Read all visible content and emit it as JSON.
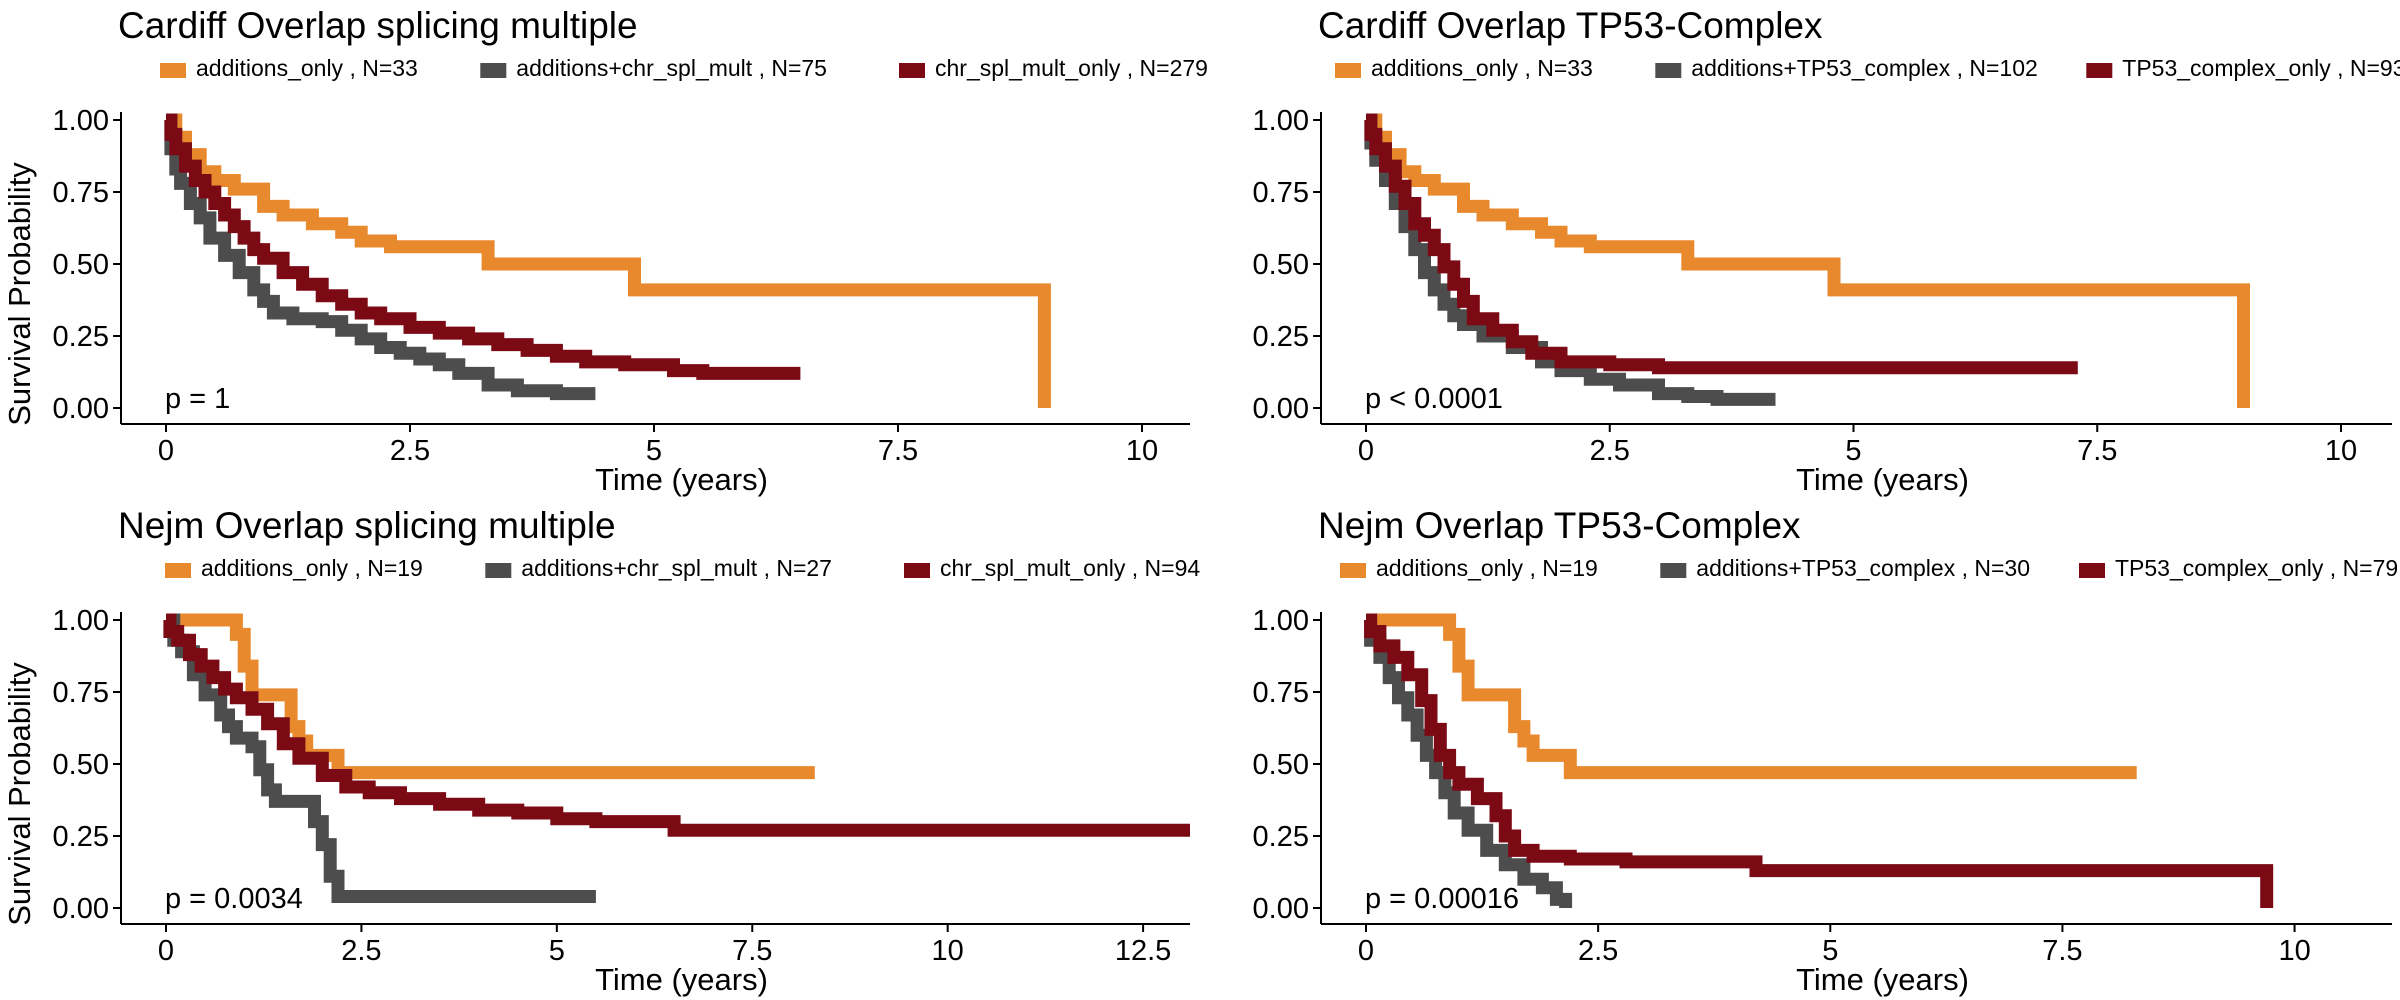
{
  "figure": {
    "ylabel": "Survival Probability",
    "xlabel": "Time (years)"
  },
  "chart_data": [
    {
      "type": "line",
      "title": "Cardiff Overlap splicing multiple",
      "xlabel": "Time (years)",
      "ylabel": "Survival Probability",
      "xlim": [
        0,
        10
      ],
      "ylim": [
        0,
        1
      ],
      "xticks": [
        "0",
        "2.5",
        "5",
        "7.5",
        "10"
      ],
      "yticks": [
        "0.00",
        "0.25",
        "0.50",
        "0.75",
        "1.00"
      ],
      "pvalue": "p = 1",
      "legend_position": "top",
      "series": [
        {
          "name": "additions_only",
          "n_label": ", N=33",
          "color": "#E8892E",
          "points": [
            [
              0,
              1
            ],
            [
              0.1,
              0.94
            ],
            [
              0.2,
              0.88
            ],
            [
              0.35,
              0.82
            ],
            [
              0.5,
              0.79
            ],
            [
              0.7,
              0.76
            ],
            [
              1.0,
              0.7
            ],
            [
              1.2,
              0.67
            ],
            [
              1.5,
              0.64
            ],
            [
              1.8,
              0.61
            ],
            [
              2.0,
              0.58
            ],
            [
              2.3,
              0.56
            ],
            [
              3.3,
              0.5
            ],
            [
              4.8,
              0.41
            ],
            [
              9.0,
              0.41
            ],
            [
              9.0,
              0.0
            ]
          ]
        },
        {
          "name": "additions+chr_spl_mult",
          "n_label": ", N=75",
          "color": "#4D4D4D",
          "points": [
            [
              0,
              1
            ],
            [
              0.05,
              0.9
            ],
            [
              0.1,
              0.83
            ],
            [
              0.15,
              0.78
            ],
            [
              0.25,
              0.71
            ],
            [
              0.35,
              0.66
            ],
            [
              0.45,
              0.59
            ],
            [
              0.6,
              0.53
            ],
            [
              0.75,
              0.47
            ],
            [
              0.9,
              0.41
            ],
            [
              1.0,
              0.37
            ],
            [
              1.1,
              0.33
            ],
            [
              1.3,
              0.31
            ],
            [
              1.6,
              0.3
            ],
            [
              1.8,
              0.27
            ],
            [
              2.0,
              0.24
            ],
            [
              2.2,
              0.21
            ],
            [
              2.4,
              0.19
            ],
            [
              2.6,
              0.17
            ],
            [
              2.8,
              0.15
            ],
            [
              3.0,
              0.12
            ],
            [
              3.3,
              0.08
            ],
            [
              3.6,
              0.06
            ],
            [
              4.0,
              0.05
            ],
            [
              4.4,
              0.05
            ]
          ]
        },
        {
          "name": "chr_spl_mult_only",
          "n_label": ", N=279",
          "color": "#7B0A14",
          "points": [
            [
              0,
              1
            ],
            [
              0.05,
              0.95
            ],
            [
              0.1,
              0.9
            ],
            [
              0.2,
              0.84
            ],
            [
              0.3,
              0.79
            ],
            [
              0.4,
              0.75
            ],
            [
              0.5,
              0.71
            ],
            [
              0.6,
              0.67
            ],
            [
              0.7,
              0.63
            ],
            [
              0.8,
              0.59
            ],
            [
              0.9,
              0.55
            ],
            [
              1.0,
              0.52
            ],
            [
              1.2,
              0.47
            ],
            [
              1.4,
              0.43
            ],
            [
              1.6,
              0.39
            ],
            [
              1.8,
              0.36
            ],
            [
              2.0,
              0.33
            ],
            [
              2.2,
              0.31
            ],
            [
              2.5,
              0.28
            ],
            [
              2.8,
              0.26
            ],
            [
              3.1,
              0.24
            ],
            [
              3.4,
              0.22
            ],
            [
              3.7,
              0.2
            ],
            [
              4.0,
              0.18
            ],
            [
              4.3,
              0.16
            ],
            [
              4.7,
              0.15
            ],
            [
              5.2,
              0.13
            ],
            [
              5.5,
              0.12
            ],
            [
              6.5,
              0.12
            ]
          ]
        }
      ]
    },
    {
      "type": "line",
      "title": "Cardiff Overlap TP53-Complex",
      "xlabel": "Time (years)",
      "ylabel": "",
      "xlim": [
        0,
        10
      ],
      "ylim": [
        0,
        1
      ],
      "xticks": [
        "0",
        "2.5",
        "5",
        "7.5",
        "10"
      ],
      "yticks": [
        "0.00",
        "0.25",
        "0.50",
        "0.75",
        "1.00"
      ],
      "pvalue": "p < 0.0001",
      "legend_position": "top",
      "series": [
        {
          "name": "additions_only",
          "n_label": ", N=33",
          "color": "#E8892E",
          "points": [
            [
              0,
              1
            ],
            [
              0.1,
              0.94
            ],
            [
              0.2,
              0.88
            ],
            [
              0.35,
              0.82
            ],
            [
              0.5,
              0.79
            ],
            [
              0.7,
              0.76
            ],
            [
              1.0,
              0.7
            ],
            [
              1.2,
              0.67
            ],
            [
              1.5,
              0.64
            ],
            [
              1.8,
              0.61
            ],
            [
              2.0,
              0.58
            ],
            [
              2.3,
              0.56
            ],
            [
              3.3,
              0.5
            ],
            [
              4.8,
              0.41
            ],
            [
              9.0,
              0.41
            ],
            [
              9.0,
              0.0
            ]
          ]
        },
        {
          "name": "additions+TP53_complex",
          "n_label": ", N=102",
          "color": "#4D4D4D",
          "points": [
            [
              0,
              1
            ],
            [
              0.05,
              0.92
            ],
            [
              0.1,
              0.86
            ],
            [
              0.2,
              0.79
            ],
            [
              0.3,
              0.71
            ],
            [
              0.4,
              0.63
            ],
            [
              0.5,
              0.55
            ],
            [
              0.6,
              0.47
            ],
            [
              0.7,
              0.41
            ],
            [
              0.8,
              0.36
            ],
            [
              0.9,
              0.32
            ],
            [
              1.0,
              0.29
            ],
            [
              1.2,
              0.25
            ],
            [
              1.5,
              0.21
            ],
            [
              1.8,
              0.16
            ],
            [
              2.0,
              0.13
            ],
            [
              2.3,
              0.1
            ],
            [
              2.6,
              0.08
            ],
            [
              3.0,
              0.05
            ],
            [
              3.3,
              0.04
            ],
            [
              3.6,
              0.03
            ],
            [
              4.2,
              0.03
            ]
          ]
        },
        {
          "name": "TP53_complex_only",
          "n_label": ", N=93",
          "color": "#7B0A14",
          "points": [
            [
              0,
              1
            ],
            [
              0.05,
              0.95
            ],
            [
              0.1,
              0.9
            ],
            [
              0.2,
              0.84
            ],
            [
              0.3,
              0.77
            ],
            [
              0.4,
              0.71
            ],
            [
              0.5,
              0.64
            ],
            [
              0.6,
              0.6
            ],
            [
              0.7,
              0.55
            ],
            [
              0.8,
              0.49
            ],
            [
              0.9,
              0.43
            ],
            [
              1.0,
              0.37
            ],
            [
              1.1,
              0.31
            ],
            [
              1.3,
              0.27
            ],
            [
              1.5,
              0.23
            ],
            [
              1.7,
              0.19
            ],
            [
              2.0,
              0.16
            ],
            [
              2.5,
              0.15
            ],
            [
              3.0,
              0.14
            ],
            [
              7.3,
              0.14
            ]
          ]
        }
      ]
    },
    {
      "type": "line",
      "title": "Nejm Overlap splicing multiple",
      "xlabel": "Time (years)",
      "ylabel": "Survival Probability",
      "xlim": [
        0,
        13.1
      ],
      "ylim": [
        0,
        1
      ],
      "xticks": [
        "0",
        "2.5",
        "5",
        "7.5",
        "10",
        "12.5"
      ],
      "yticks": [
        "0.00",
        "0.25",
        "0.50",
        "0.75",
        "1.00"
      ],
      "pvalue": "p = 0.0034",
      "legend_position": "top",
      "series": [
        {
          "name": "additions_only",
          "n_label": ", N=19",
          "color": "#E8892E",
          "points": [
            [
              0,
              1
            ],
            [
              0.6,
              1.0
            ],
            [
              0.9,
              0.95
            ],
            [
              1.0,
              0.84
            ],
            [
              1.1,
              0.74
            ],
            [
              1.5,
              0.74
            ],
            [
              1.6,
              0.63
            ],
            [
              1.7,
              0.58
            ],
            [
              1.8,
              0.53
            ],
            [
              2.2,
              0.47
            ],
            [
              8.3,
              0.47
            ]
          ]
        },
        {
          "name": "additions+chr_spl_mult",
          "n_label": ", N=27",
          "color": "#4D4D4D",
          "points": [
            [
              0,
              1
            ],
            [
              0.1,
              0.93
            ],
            [
              0.2,
              0.89
            ],
            [
              0.35,
              0.81
            ],
            [
              0.5,
              0.74
            ],
            [
              0.7,
              0.67
            ],
            [
              0.8,
              0.63
            ],
            [
              0.9,
              0.59
            ],
            [
              1.1,
              0.56
            ],
            [
              1.2,
              0.48
            ],
            [
              1.3,
              0.41
            ],
            [
              1.4,
              0.37
            ],
            [
              1.8,
              0.37
            ],
            [
              1.9,
              0.3
            ],
            [
              2.0,
              0.22
            ],
            [
              2.1,
              0.11
            ],
            [
              2.2,
              0.04
            ],
            [
              5.5,
              0.04
            ]
          ]
        },
        {
          "name": "chr_spl_mult_only",
          "n_label": ", N=94",
          "color": "#7B0A14",
          "points": [
            [
              0,
              1
            ],
            [
              0.05,
              0.96
            ],
            [
              0.15,
              0.93
            ],
            [
              0.3,
              0.88
            ],
            [
              0.45,
              0.84
            ],
            [
              0.6,
              0.8
            ],
            [
              0.75,
              0.76
            ],
            [
              0.9,
              0.73
            ],
            [
              1.1,
              0.69
            ],
            [
              1.3,
              0.64
            ],
            [
              1.5,
              0.57
            ],
            [
              1.7,
              0.52
            ],
            [
              2.0,
              0.46
            ],
            [
              2.3,
              0.42
            ],
            [
              2.6,
              0.4
            ],
            [
              3.0,
              0.38
            ],
            [
              3.5,
              0.36
            ],
            [
              4.0,
              0.34
            ],
            [
              4.5,
              0.33
            ],
            [
              5.0,
              0.31
            ],
            [
              5.5,
              0.3
            ],
            [
              6.5,
              0.27
            ],
            [
              13.1,
              0.27
            ]
          ]
        }
      ]
    },
    {
      "type": "line",
      "title": "Nejm Overlap TP53-Complex",
      "xlabel": "Time (years)",
      "ylabel": "",
      "xlim": [
        0,
        10.5
      ],
      "ylim": [
        0,
        1
      ],
      "xticks": [
        "0",
        "2.5",
        "5",
        "7.5",
        "10"
      ],
      "yticks": [
        "0.00",
        "0.25",
        "0.50",
        "0.75",
        "1.00"
      ],
      "pvalue": "p = 0.00016",
      "legend_position": "top",
      "series": [
        {
          "name": "additions_only",
          "n_label": ", N=19",
          "color": "#E8892E",
          "points": [
            [
              0,
              1
            ],
            [
              0.6,
              1.0
            ],
            [
              0.9,
              0.95
            ],
            [
              1.0,
              0.84
            ],
            [
              1.1,
              0.74
            ],
            [
              1.5,
              0.74
            ],
            [
              1.6,
              0.63
            ],
            [
              1.7,
              0.58
            ],
            [
              1.8,
              0.53
            ],
            [
              2.2,
              0.47
            ],
            [
              8.3,
              0.47
            ]
          ]
        },
        {
          "name": "additions+TP53_complex",
          "n_label": ", N=30",
          "color": "#4D4D4D",
          "points": [
            [
              0,
              1
            ],
            [
              0.05,
              0.93
            ],
            [
              0.15,
              0.87
            ],
            [
              0.25,
              0.8
            ],
            [
              0.35,
              0.73
            ],
            [
              0.45,
              0.67
            ],
            [
              0.55,
              0.6
            ],
            [
              0.65,
              0.53
            ],
            [
              0.75,
              0.47
            ],
            [
              0.85,
              0.4
            ],
            [
              0.95,
              0.33
            ],
            [
              1.1,
              0.27
            ],
            [
              1.3,
              0.2
            ],
            [
              1.5,
              0.15
            ],
            [
              1.7,
              0.1
            ],
            [
              1.9,
              0.07
            ],
            [
              2.05,
              0.03
            ],
            [
              2.15,
              0.0
            ]
          ]
        },
        {
          "name": "TP53_complex_only",
          "n_label": ", N=79",
          "color": "#7B0A14",
          "points": [
            [
              0,
              1
            ],
            [
              0.05,
              0.96
            ],
            [
              0.15,
              0.91
            ],
            [
              0.3,
              0.87
            ],
            [
              0.45,
              0.81
            ],
            [
              0.6,
              0.72
            ],
            [
              0.7,
              0.62
            ],
            [
              0.8,
              0.53
            ],
            [
              0.9,
              0.47
            ],
            [
              1.0,
              0.43
            ],
            [
              1.2,
              0.38
            ],
            [
              1.4,
              0.32
            ],
            [
              1.5,
              0.25
            ],
            [
              1.6,
              0.2
            ],
            [
              1.8,
              0.18
            ],
            [
              2.2,
              0.17
            ],
            [
              2.8,
              0.16
            ],
            [
              4.2,
              0.13
            ],
            [
              9.7,
              0.13
            ],
            [
              9.7,
              0.0
            ]
          ]
        }
      ]
    }
  ]
}
